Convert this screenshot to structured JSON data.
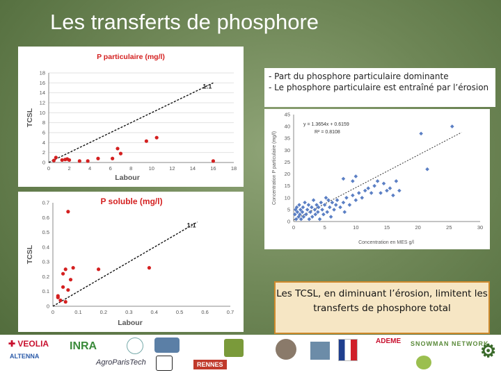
{
  "slide_title": "Les transferts de phosphore",
  "notes": {
    "line1": "- Part du phosphore particulaire dominante",
    "line2": "- Le phosphore particulaire est entraîné par l’érosion"
  },
  "callout": {
    "text": "Les TCSL, en diminuant l’érosion, limitent les transferts de phosphore total"
  },
  "logos": {
    "veolia": "VEOLIA",
    "altenna": "ALTENNA",
    "inra": "INRA",
    "agroparistech": "AgroParisTech",
    "rennes": "RENNES",
    "ademe": "ADEME",
    "snowman": "SNOWMAN NETWORK"
  },
  "chart_data": [
    {
      "type": "scatter",
      "title": "P particulaire (mg/l)",
      "xlabel": "Labour",
      "ylabel": "TCSL",
      "xlim": [
        0,
        18
      ],
      "ylim": [
        0,
        18
      ],
      "xticks": [
        0,
        2,
        4,
        6,
        8,
        10,
        12,
        14,
        16,
        18
      ],
      "yticks": [
        0,
        2,
        4,
        6,
        8,
        10,
        12,
        14,
        16,
        18
      ],
      "color": "#d42020",
      "reference_line": {
        "label": "1:1",
        "from": [
          0,
          0
        ],
        "to": [
          16,
          16
        ]
      },
      "points": [
        [
          0.5,
          0.4
        ],
        [
          0.7,
          1.0
        ],
        [
          1.3,
          0.5
        ],
        [
          1.6,
          0.6
        ],
        [
          1.8,
          0.7
        ],
        [
          2.0,
          0.5
        ],
        [
          3.0,
          0.3
        ],
        [
          3.8,
          0.3
        ],
        [
          4.8,
          0.8
        ],
        [
          6.2,
          0.8
        ],
        [
          6.7,
          2.8
        ],
        [
          7.0,
          1.8
        ],
        [
          9.5,
          4.3
        ],
        [
          10.5,
          5.0
        ],
        [
          16.0,
          0.3
        ]
      ]
    },
    {
      "type": "scatter",
      "title": "P soluble (mg/l)",
      "xlabel": "Labour",
      "ylabel": "TCSL",
      "xlim": [
        0,
        0.7
      ],
      "ylim": [
        0,
        0.7
      ],
      "xticks": [
        0,
        0.1,
        0.2,
        0.3,
        0.4,
        0.5,
        0.6,
        0.7
      ],
      "yticks": [
        0,
        0.1,
        0.2,
        0.3,
        0.4,
        0.5,
        0.6,
        0.7
      ],
      "color": "#d42020",
      "reference_line": {
        "label": "1:1",
        "from": [
          0,
          0
        ],
        "to": [
          0.57,
          0.57
        ]
      },
      "points": [
        [
          0.02,
          0.06
        ],
        [
          0.02,
          0.07
        ],
        [
          0.03,
          0.04
        ],
        [
          0.04,
          0.13
        ],
        [
          0.04,
          0.22
        ],
        [
          0.05,
          0.25
        ],
        [
          0.05,
          0.03
        ],
        [
          0.06,
          0.64
        ],
        [
          0.06,
          0.11
        ],
        [
          0.07,
          0.18
        ],
        [
          0.08,
          0.26
        ],
        [
          0.18,
          0.25
        ],
        [
          0.38,
          0.26
        ]
      ]
    },
    {
      "type": "scatter",
      "title": "",
      "xlabel": "Concentration en MES g/l",
      "ylabel": "Concentration P particulaire (mg/l)",
      "xlim": [
        0,
        30
      ],
      "ylim": [
        0,
        45
      ],
      "xticks": [
        0,
        5,
        10,
        15,
        20,
        25,
        30
      ],
      "yticks": [
        0,
        5,
        10,
        15,
        20,
        25,
        30,
        35,
        40,
        45
      ],
      "color": "#5b7fc4",
      "equation": "y = 1.3654x + 0.6159",
      "r2": "R² = 0.8108",
      "trendline": {
        "from": [
          0,
          0.6159
        ],
        "to": [
          27,
          37.48
        ]
      },
      "points": [
        [
          0.2,
          3
        ],
        [
          0.3,
          5
        ],
        [
          0.4,
          1
        ],
        [
          0.5,
          6
        ],
        [
          0.6,
          4
        ],
        [
          0.8,
          2
        ],
        [
          0.9,
          7
        ],
        [
          1,
          3
        ],
        [
          1.1,
          5
        ],
        [
          1.2,
          1
        ],
        [
          1.4,
          4
        ],
        [
          1.5,
          6
        ],
        [
          1.6,
          2
        ],
        [
          1.8,
          8
        ],
        [
          2,
          3
        ],
        [
          2.2,
          5
        ],
        [
          2.4,
          7
        ],
        [
          2.5,
          1
        ],
        [
          2.7,
          4
        ],
        [
          2.9,
          6
        ],
        [
          3,
          2
        ],
        [
          3.2,
          9
        ],
        [
          3.4,
          5
        ],
        [
          3.5,
          3
        ],
        [
          3.7,
          7
        ],
        [
          3.9,
          4
        ],
        [
          4,
          6
        ],
        [
          4.2,
          1
        ],
        [
          4.4,
          8
        ],
        [
          4.6,
          5
        ],
        [
          4.8,
          3
        ],
        [
          5,
          7
        ],
        [
          5.2,
          10
        ],
        [
          5.4,
          4
        ],
        [
          5.6,
          9
        ],
        [
          5.8,
          6
        ],
        [
          6,
          2
        ],
        [
          6.2,
          8
        ],
        [
          6.5,
          5
        ],
        [
          6.8,
          7
        ],
        [
          7,
          9
        ],
        [
          7.5,
          6
        ],
        [
          8,
          8
        ],
        [
          8.2,
          4
        ],
        [
          8.5,
          10
        ],
        [
          9,
          7
        ],
        [
          9.5,
          11
        ],
        [
          10,
          9
        ],
        [
          10.5,
          12
        ],
        [
          11,
          10
        ],
        [
          11.5,
          13
        ],
        [
          12,
          14
        ],
        [
          12.5,
          12
        ],
        [
          13,
          15
        ],
        [
          13.5,
          17
        ],
        [
          14,
          12
        ],
        [
          14.5,
          16
        ],
        [
          15,
          13
        ],
        [
          15.5,
          14
        ],
        [
          16,
          11
        ],
        [
          16.5,
          17
        ],
        [
          17,
          13
        ],
        [
          8,
          18
        ],
        [
          9.5,
          17
        ],
        [
          10,
          19
        ],
        [
          20.5,
          37
        ],
        [
          21.5,
          22
        ],
        [
          25.5,
          40
        ]
      ]
    }
  ]
}
